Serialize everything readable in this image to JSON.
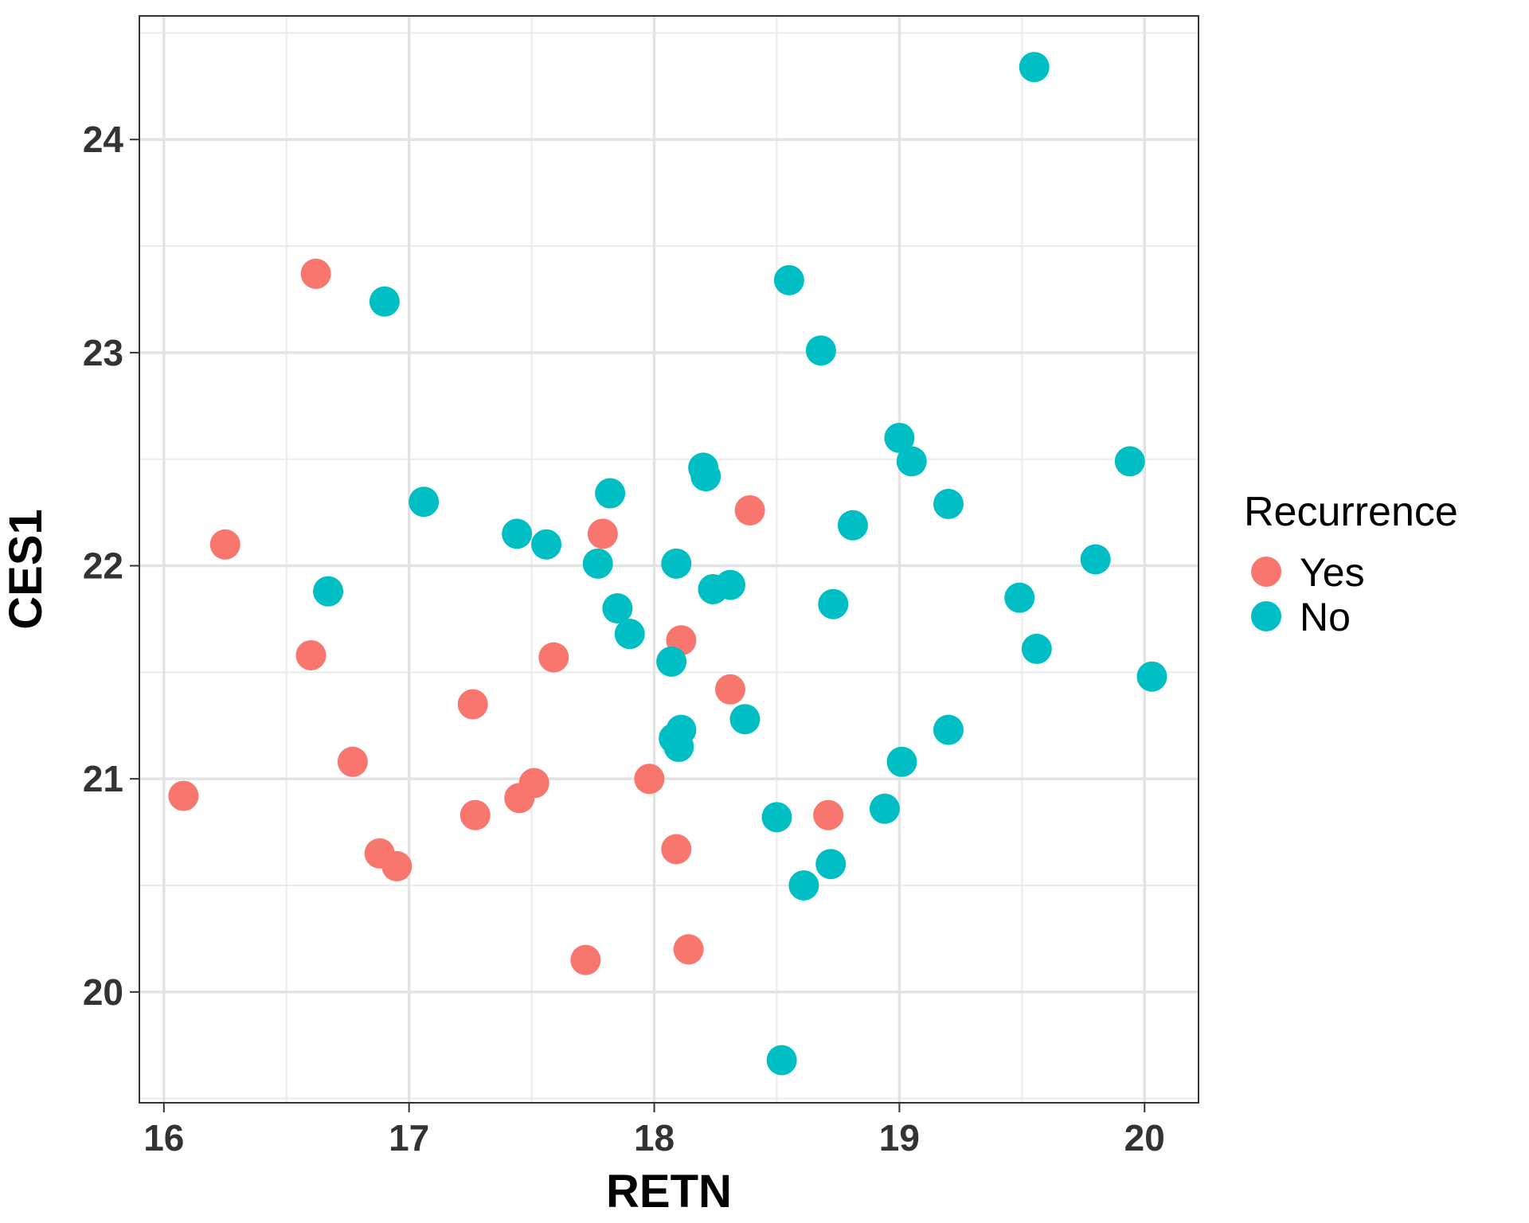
{
  "chart_data": {
    "type": "scatter",
    "xlabel": "RETN",
    "ylabel": "CES1",
    "xlim": [
      15.9,
      20.22
    ],
    "ylim": [
      19.48,
      24.58
    ],
    "x_ticks": [
      16,
      17,
      18,
      19,
      20
    ],
    "y_ticks": [
      20,
      21,
      22,
      23,
      24
    ],
    "grid": true,
    "legend": {
      "title": "Recurrence",
      "position": "right",
      "entries": [
        {
          "name": "Yes",
          "color": "#F8766D"
        },
        {
          "name": "No",
          "color": "#00BFC4"
        }
      ]
    },
    "series": [
      {
        "name": "Yes",
        "color": "#F8766D",
        "points": [
          [
            16.08,
            20.92
          ],
          [
            16.25,
            22.1
          ],
          [
            16.6,
            21.58
          ],
          [
            16.62,
            23.37
          ],
          [
            16.77,
            21.08
          ],
          [
            16.88,
            20.65
          ],
          [
            16.95,
            20.59
          ],
          [
            17.26,
            21.35
          ],
          [
            17.27,
            20.83
          ],
          [
            17.45,
            20.91
          ],
          [
            17.51,
            20.98
          ],
          [
            17.59,
            21.57
          ],
          [
            17.72,
            20.15
          ],
          [
            17.79,
            22.15
          ],
          [
            17.98,
            21.0
          ],
          [
            18.09,
            20.67
          ],
          [
            18.11,
            21.65
          ],
          [
            18.14,
            20.2
          ],
          [
            18.31,
            21.42
          ],
          [
            18.39,
            22.26
          ],
          [
            18.71,
            20.83
          ]
        ]
      },
      {
        "name": "No",
        "color": "#00BFC4",
        "points": [
          [
            16.67,
            21.88
          ],
          [
            16.9,
            23.24
          ],
          [
            17.06,
            22.3
          ],
          [
            17.44,
            22.15
          ],
          [
            17.56,
            22.1
          ],
          [
            17.77,
            22.01
          ],
          [
            17.82,
            22.34
          ],
          [
            17.85,
            21.8
          ],
          [
            17.9,
            21.68
          ],
          [
            18.07,
            21.55
          ],
          [
            18.08,
            21.19
          ],
          [
            18.09,
            22.01
          ],
          [
            18.1,
            21.15
          ],
          [
            18.11,
            21.23
          ],
          [
            18.2,
            22.46
          ],
          [
            18.21,
            22.42
          ],
          [
            18.24,
            21.89
          ],
          [
            18.31,
            21.91
          ],
          [
            18.37,
            21.28
          ],
          [
            18.5,
            20.82
          ],
          [
            18.52,
            19.68
          ],
          [
            18.55,
            23.34
          ],
          [
            18.61,
            20.5
          ],
          [
            18.68,
            23.01
          ],
          [
            18.72,
            20.6
          ],
          [
            18.73,
            21.82
          ],
          [
            18.81,
            22.19
          ],
          [
            18.94,
            20.86
          ],
          [
            19.0,
            22.6
          ],
          [
            19.01,
            21.08
          ],
          [
            19.05,
            22.49
          ],
          [
            19.2,
            22.29
          ],
          [
            19.2,
            21.23
          ],
          [
            19.49,
            21.85
          ],
          [
            19.55,
            24.34
          ],
          [
            19.56,
            21.61
          ],
          [
            19.8,
            22.03
          ],
          [
            19.94,
            22.49
          ],
          [
            20.03,
            21.48
          ]
        ]
      }
    ]
  }
}
